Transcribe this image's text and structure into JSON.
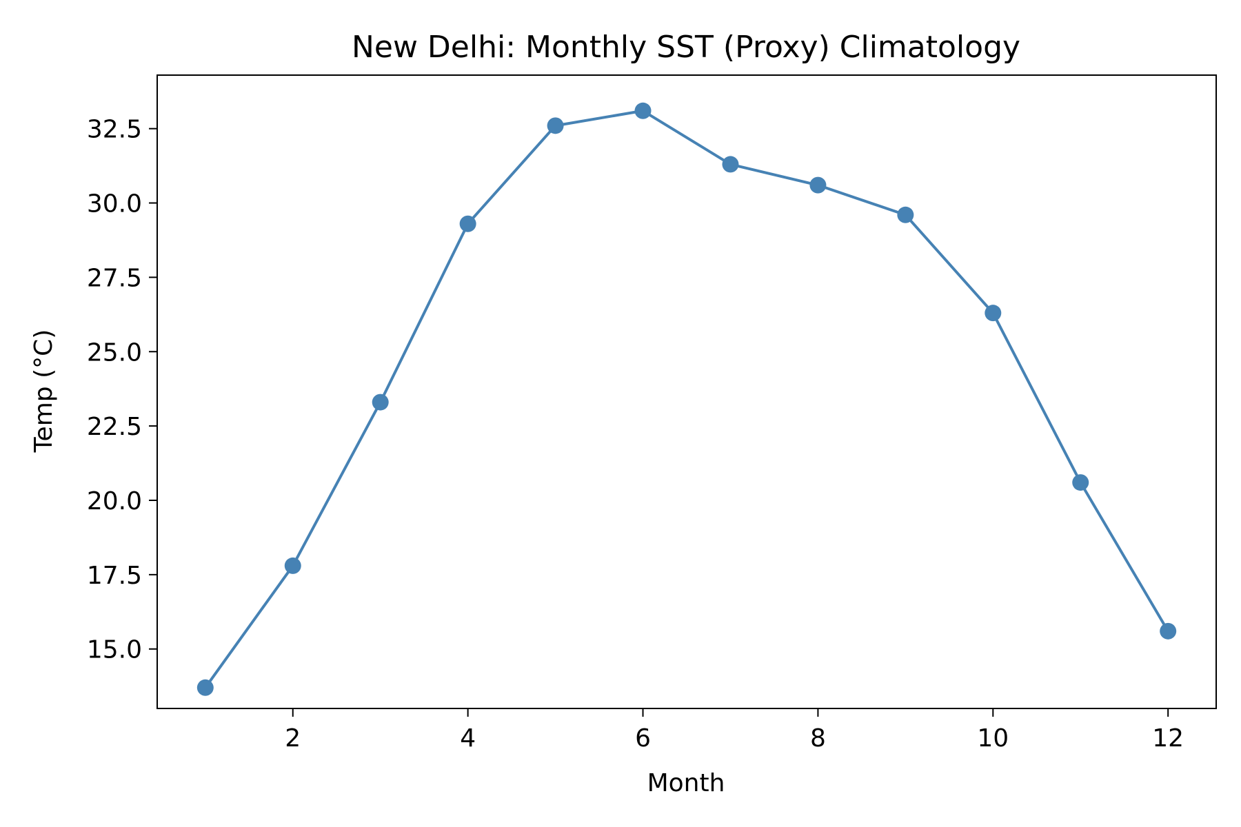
{
  "chart_data": {
    "type": "line",
    "title": "New Delhi: Monthly SST (Proxy) Climatology",
    "xlabel": "Month",
    "ylabel": "Temp (°C)",
    "x": [
      1,
      2,
      3,
      4,
      5,
      6,
      7,
      8,
      9,
      10,
      11,
      12
    ],
    "series": [
      {
        "values": [
          13.7,
          17.8,
          23.3,
          29.3,
          32.6,
          33.1,
          31.3,
          30.6,
          29.6,
          26.3,
          20.6,
          15.6
        ],
        "color": "#4682b4",
        "marker": "circle"
      }
    ],
    "xlim": [
      0.45,
      12.55
    ],
    "ylim": [
      13.0,
      34.3
    ],
    "xticks": [
      2,
      4,
      6,
      8,
      10,
      12
    ],
    "xtick_labels": [
      "2",
      "4",
      "6",
      "8",
      "10",
      "12"
    ],
    "yticks": [
      15.0,
      17.5,
      20.0,
      22.5,
      25.0,
      27.5,
      30.0,
      32.5
    ],
    "ytick_labels": [
      "15.0",
      "17.5",
      "20.0",
      "22.5",
      "25.0",
      "27.5",
      "30.0",
      "32.5"
    ],
    "grid": false,
    "legend": "none"
  }
}
